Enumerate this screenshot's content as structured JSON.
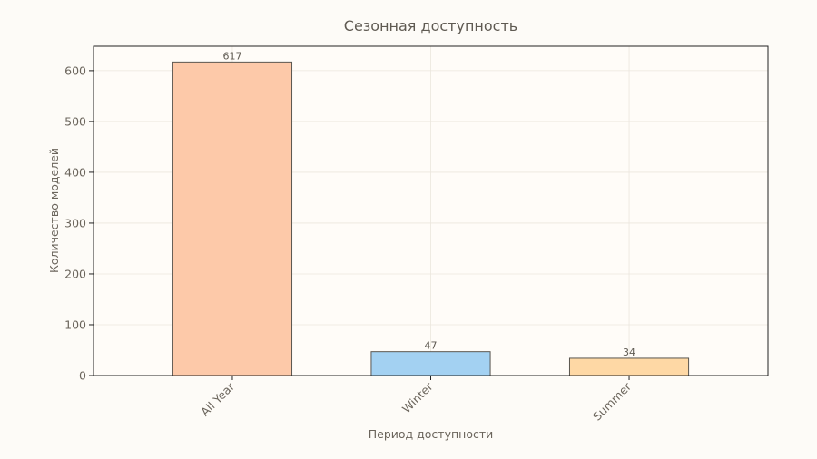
{
  "chart_data": {
    "type": "bar",
    "title": "Сезонная доступность",
    "xlabel": "Период доступности",
    "ylabel": "Количество моделей",
    "categories": [
      "All Year",
      "Winter",
      "Summer"
    ],
    "values": [
      617,
      47,
      34
    ],
    "value_labels": [
      "617",
      "47",
      "34"
    ],
    "colors": [
      "#fdc9a9",
      "#a3d1f2",
      "#fed8a5"
    ],
    "edge_color": "#5a5650",
    "ylim": [
      0,
      648
    ],
    "yticks": [
      0,
      100,
      200,
      300,
      400,
      500,
      600
    ],
    "ytick_labels": [
      "0",
      "100",
      "200",
      "300",
      "400",
      "500",
      "600"
    ],
    "grid": true,
    "legend": "none",
    "xtick_rotation_deg": 45
  }
}
